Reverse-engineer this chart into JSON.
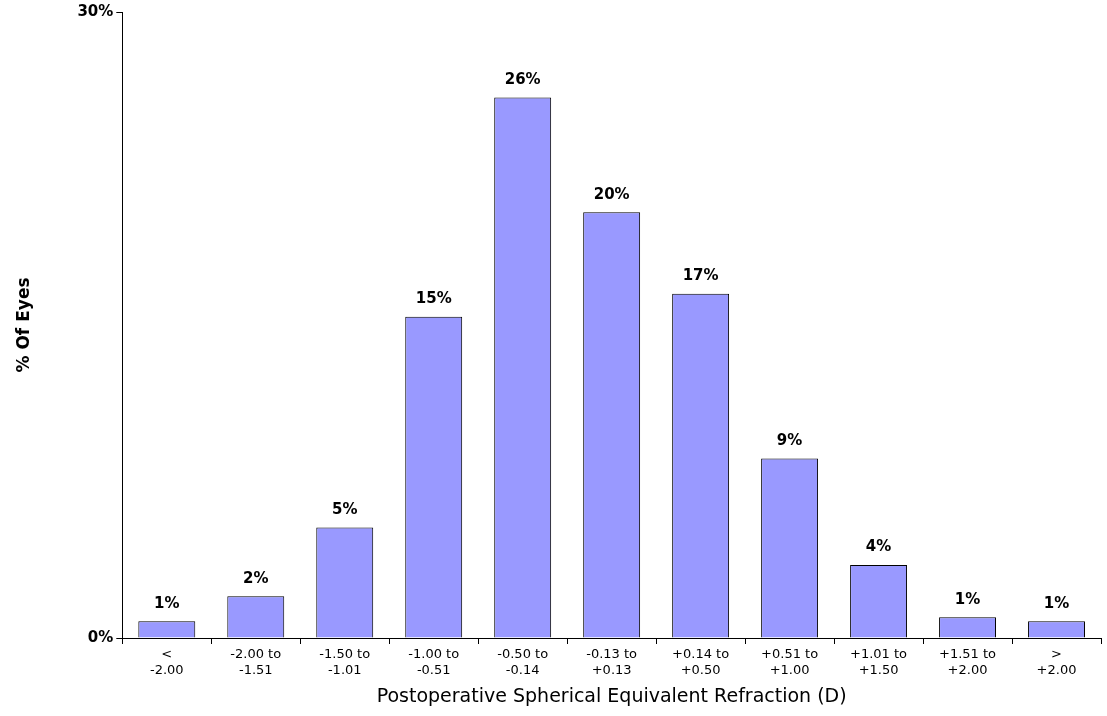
{
  "chart_data": {
    "type": "bar",
    "xlabel": "Postoperative Spherical Equivalent Refraction (D)",
    "ylabel": "% Of Eyes",
    "categories": [
      "<\n-2.00",
      "-2.00 to\n-1.51",
      "-1.50 to\n-1.01",
      "-1.00 to\n-0.51",
      "-0.50 to\n-0.14",
      "-0.13 to\n+0.13",
      "+0.14 to\n+0.50",
      "+0.51 to\n+1.00",
      "+1.01 to\n+1.50",
      "+1.51 to\n+2.00",
      ">\n+2.00"
    ],
    "values": [
      0.8,
      2.0,
      5.3,
      15.4,
      25.9,
      20.4,
      16.5,
      8.6,
      3.5,
      1.0,
      0.8
    ],
    "value_labels": [
      "1%",
      "2%",
      "5%",
      "15%",
      "26%",
      "20%",
      "17%",
      "9%",
      "4%",
      "1%",
      "1%"
    ],
    "color": "#9999ff",
    "ylim": [
      0,
      30
    ],
    "yticks": [
      {
        "value": 0,
        "label": "0%"
      },
      {
        "value": 30,
        "label": "30%"
      }
    ],
    "grid": false,
    "legend": false
  }
}
